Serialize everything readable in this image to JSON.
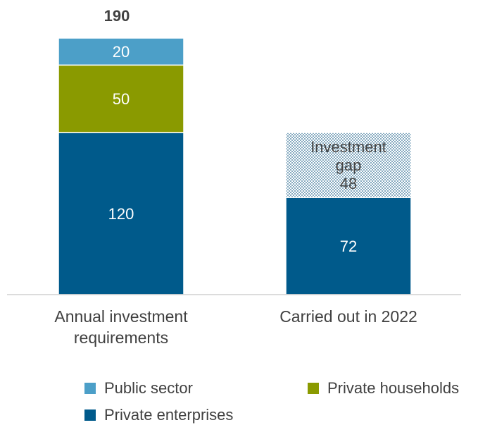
{
  "chart_data": {
    "type": "bar",
    "stacked": true,
    "categories": [
      [
        "Annual investment",
        "requirements"
      ],
      [
        "Carried out in 2022"
      ]
    ],
    "series": [
      {
        "name": "Private enterprises",
        "color": "#005a8b",
        "values": [
          120,
          72
        ]
      },
      {
        "name": "Private households",
        "color": "#8a9a00",
        "values": [
          50,
          null
        ]
      },
      {
        "name": "Public sector",
        "color": "#4c9fc8",
        "values": [
          20,
          null
        ]
      },
      {
        "name": [
          "Investment",
          "gap"
        ],
        "color": "#ffffff",
        "pattern": "dots",
        "values": [
          null,
          48
        ]
      }
    ],
    "totals": [
      190,
      null
    ],
    "ylim": [
      0,
      190
    ],
    "grid": false,
    "legend": {
      "placement": "bottom",
      "entries": [
        "Public sector",
        "Private households",
        "Private enterprises"
      ]
    }
  }
}
